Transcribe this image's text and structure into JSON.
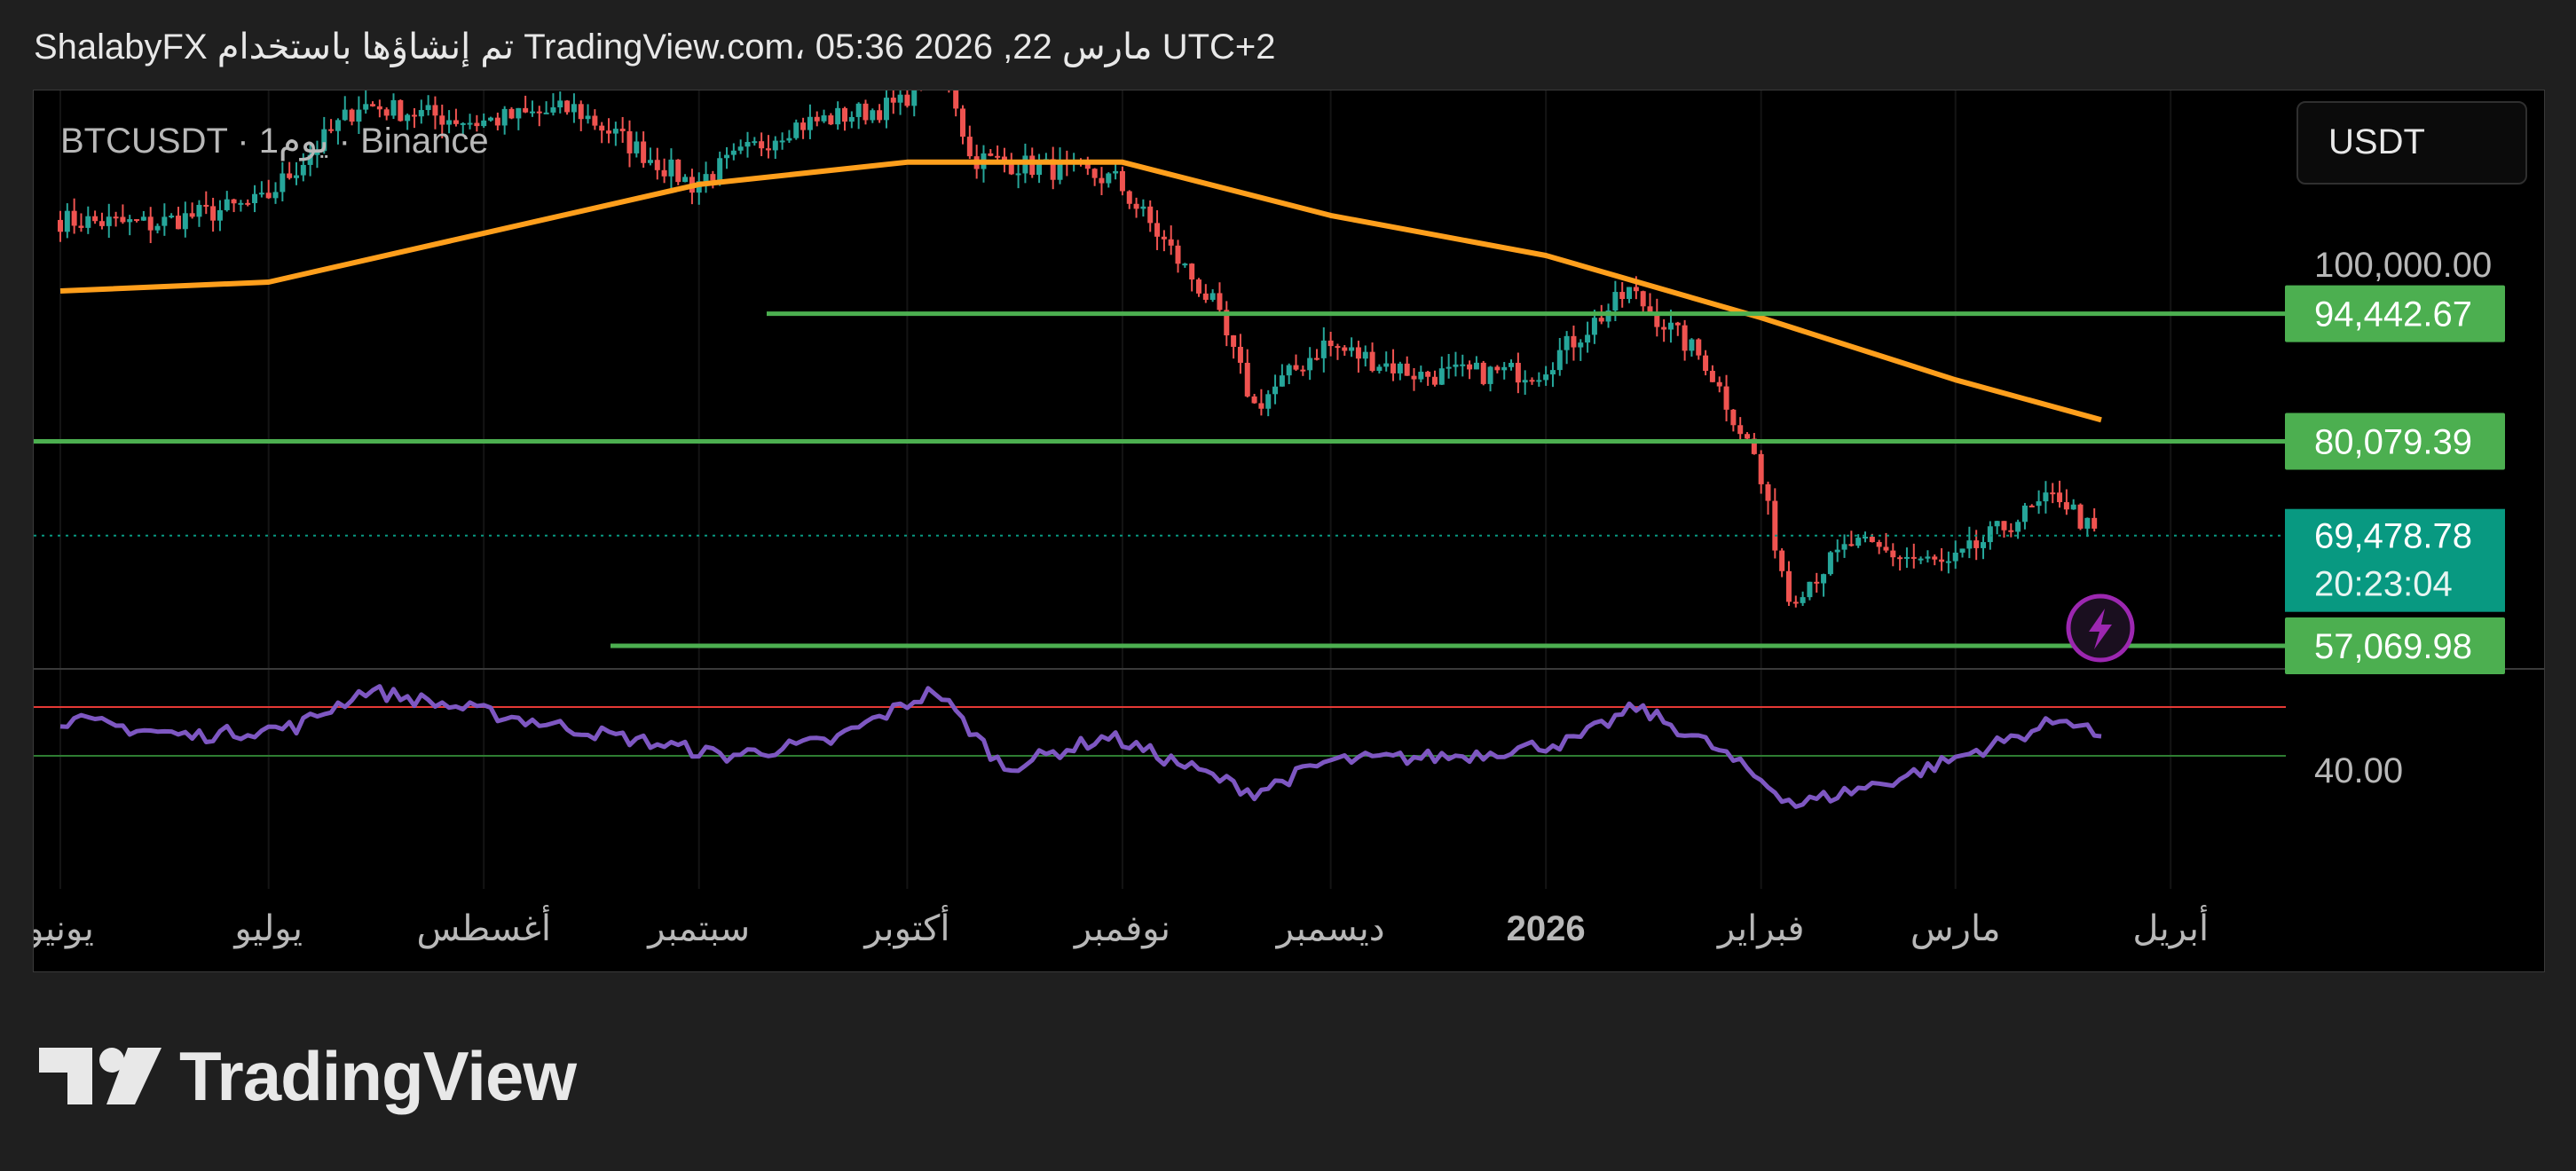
{
  "header": {
    "text": "ShalabyFX تم إنشاؤها باستخدام TradingView.com، 05:36 2026 ,22 مارس UTC+2"
  },
  "symbol_line": "BTCUSDT · 1يوم · Binance",
  "currency_button": "USDT",
  "brand": "TradingView",
  "colors": {
    "up": "#26a69a",
    "down": "#ef5350",
    "ma": "#ff9f1c",
    "level": "#4caf50",
    "rsi": "#7e57c2",
    "rsi_upper": "#e53935",
    "rsi_lower": "#2e7d32",
    "last_price_bg": "#089981",
    "alert": "#9c27b0"
  },
  "chart_data": {
    "type": "candlestick",
    "symbol": "BTCUSDT",
    "interval": "1D",
    "exchange": "Binance",
    "x_labels": [
      "يونيو",
      "يوليو",
      "أغسطس",
      "سبتمبر",
      "أكتوبر",
      "نوفمبر",
      "ديسمبر",
      "2026",
      "فبراير",
      "مارس",
      "أبريل"
    ],
    "price_axis_labels": [
      "100,000.00"
    ],
    "price_series_approx": [
      [
        "2025-06-01",
        105000
      ],
      [
        "2025-06-15",
        104500
      ],
      [
        "2025-07-01",
        107000
      ],
      [
        "2025-07-15",
        118000
      ],
      [
        "2025-08-01",
        116000
      ],
      [
        "2025-08-15",
        117500
      ],
      [
        "2025-09-01",
        109000
      ],
      [
        "2025-09-15",
        115500
      ],
      [
        "2025-10-01",
        118000
      ],
      [
        "2025-10-07",
        124500
      ],
      [
        "2025-10-11",
        112000
      ],
      [
        "2025-10-25",
        110500
      ],
      [
        "2025-11-01",
        109500
      ],
      [
        "2025-11-15",
        95500
      ],
      [
        "2025-11-21",
        84000
      ],
      [
        "2025-12-01",
        91000
      ],
      [
        "2025-12-15",
        87500
      ],
      [
        "2026-01-01",
        88000
      ],
      [
        "2026-01-14",
        97000
      ],
      [
        "2026-01-25",
        89000
      ],
      [
        "2026-02-01",
        78500
      ],
      [
        "2026-02-06",
        62500
      ],
      [
        "2026-02-15",
        68500
      ],
      [
        "2026-03-01",
        66000
      ],
      [
        "2026-03-10",
        71000
      ],
      [
        "2026-03-17",
        74000
      ],
      [
        "2026-03-22",
        69478.78
      ]
    ],
    "moving_average": [
      [
        "2025-06-01",
        97000
      ],
      [
        "2025-07-01",
        98000
      ],
      [
        "2025-08-01",
        103500
      ],
      [
        "2025-09-01",
        109000
      ],
      [
        "2025-10-01",
        111500
      ],
      [
        "2025-11-01",
        111500
      ],
      [
        "2025-12-01",
        105500
      ],
      [
        "2026-01-01",
        101000
      ],
      [
        "2026-02-01",
        94000
      ],
      [
        "2026-03-01",
        87000
      ],
      [
        "2026-03-22",
        82500
      ]
    ],
    "horizontal_levels": [
      {
        "price": 94442.67,
        "label": "94,442.67"
      },
      {
        "price": 80079.39,
        "label": "80,079.39"
      },
      {
        "price": 57069.98,
        "label": "57,069.98"
      }
    ],
    "last_price": {
      "value": 69478.78,
      "label": "69,478.78",
      "countdown": "20:23:04"
    },
    "rsi": {
      "axis_label": "40.00",
      "upper_band": 60,
      "lower_band": 40,
      "series": [
        [
          "2025-06-01",
          55
        ],
        [
          "2025-06-20",
          48
        ],
        [
          "2025-07-05",
          52
        ],
        [
          "2025-07-15",
          67
        ],
        [
          "2025-08-01",
          58
        ],
        [
          "2025-08-20",
          48
        ],
        [
          "2025-09-05",
          40
        ],
        [
          "2025-09-20",
          46
        ],
        [
          "2025-10-05",
          67
        ],
        [
          "2025-10-15",
          35
        ],
        [
          "2025-10-30",
          48
        ],
        [
          "2025-11-20",
          25
        ],
        [
          "2025-12-01",
          38
        ],
        [
          "2025-12-20",
          40
        ],
        [
          "2026-01-05",
          46
        ],
        [
          "2026-01-14",
          60
        ],
        [
          "2026-01-25",
          44
        ],
        [
          "2026-02-06",
          20
        ],
        [
          "2026-02-20",
          30
        ],
        [
          "2026-03-10",
          48
        ],
        [
          "2026-03-17",
          56
        ],
        [
          "2026-03-22",
          48
        ]
      ]
    }
  }
}
